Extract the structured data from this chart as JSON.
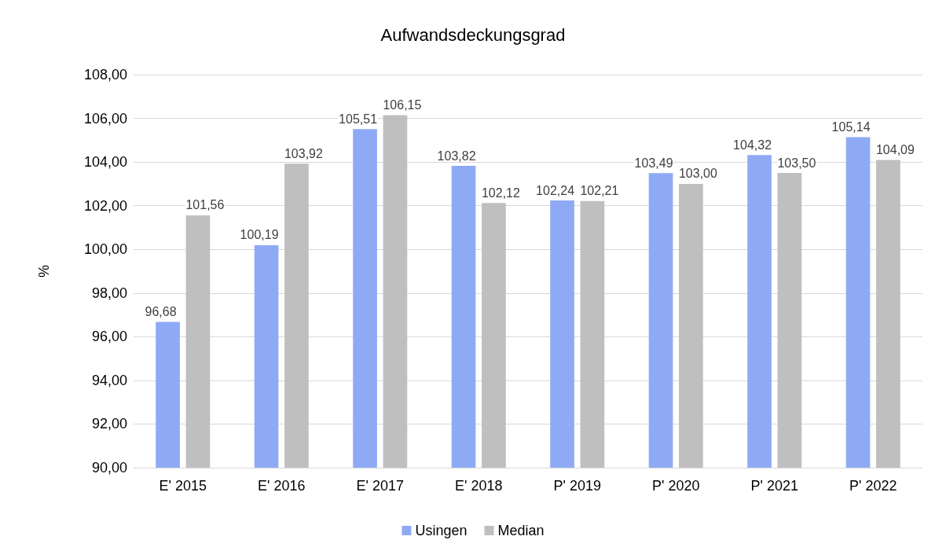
{
  "chart_data": {
    "type": "bar",
    "title": "Aufwandsdeckungsgrad",
    "ylabel": "%",
    "categories": [
      "E' 2015",
      "E' 2016",
      "E' 2017",
      "E' 2018",
      "P' 2019",
      "P' 2020",
      "P' 2021",
      "P' 2022"
    ],
    "series": [
      {
        "name": "Usingen",
        "color": "#8faaf5",
        "values": [
          96.68,
          100.19,
          105.51,
          103.82,
          102.24,
          103.49,
          104.32,
          105.14
        ],
        "value_labels": [
          "96,68",
          "100,19",
          "105,51",
          "103,82",
          "102,24",
          "103,49",
          "104,32",
          "105,14"
        ]
      },
      {
        "name": "Median",
        "color": "#bfbfbf",
        "values": [
          101.56,
          103.92,
          106.15,
          102.12,
          102.21,
          103.0,
          103.5,
          104.09
        ],
        "value_labels": [
          "101,56",
          "103,92",
          "106,15",
          "102,12",
          "102,21",
          "103,00",
          "103,50",
          "104,09"
        ]
      }
    ],
    "ylim": [
      90,
      108
    ],
    "yticks": [
      {
        "value": 90,
        "label": "90,00"
      },
      {
        "value": 92,
        "label": "92,00"
      },
      {
        "value": 94,
        "label": "94,00"
      },
      {
        "value": 96,
        "label": "96,00"
      },
      {
        "value": 98,
        "label": "98,00"
      },
      {
        "value": 100,
        "label": "100,00"
      },
      {
        "value": 102,
        "label": "102,00"
      },
      {
        "value": 104,
        "label": "104,00"
      },
      {
        "value": 106,
        "label": "106,00"
      },
      {
        "value": 108,
        "label": "108,00"
      }
    ],
    "grid": "y",
    "legend": "bottom"
  }
}
